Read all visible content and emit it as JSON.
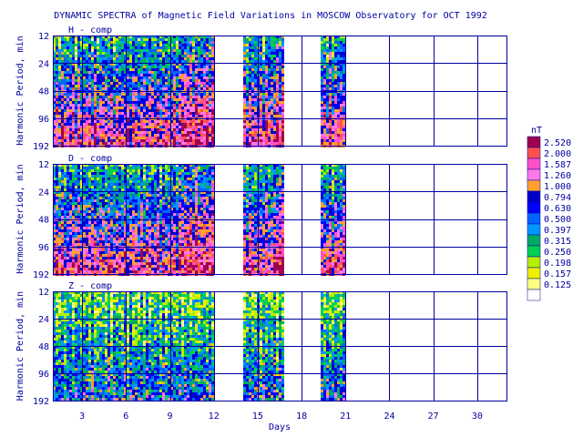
{
  "chart_data": {
    "type": "heatmap",
    "title": "DYNAMIC SPECTRA of Magnetic Field Variations in MOSCOW Observatory for OCT 1992",
    "xlabel": "Days",
    "ylabel": "Harmonic Period, min",
    "xlim": [
      1,
      32
    ],
    "x_ticks": [
      3,
      6,
      9,
      12,
      15,
      18,
      21,
      24,
      27,
      30
    ],
    "x_tick_labels": [
      "3",
      "6",
      "9",
      "12",
      "15",
      "18",
      "21",
      "24",
      "27",
      "30"
    ],
    "y_ticks": [
      12,
      24,
      48,
      96,
      192
    ],
    "y_tick_labels": [
      "12",
      "24",
      "48",
      "96",
      "192"
    ],
    "y_scale": "log2",
    "y_direction": "increasing-downward",
    "grid": true,
    "data_segments_days": [
      [
        1,
        12
      ],
      [
        14,
        16.8
      ],
      [
        19.3,
        21
      ]
    ],
    "panels": [
      {
        "name": "H - comp",
        "dominant_range_nT": [
          0.25,
          2.52
        ]
      },
      {
        "name": "D - comp",
        "dominant_range_nT": [
          0.25,
          2.52
        ]
      },
      {
        "name": "Z - comp",
        "dominant_range_nT": [
          0.125,
          0.794
        ]
      }
    ],
    "colorbar": {
      "label": "nT",
      "levels": [
        "2.520",
        "2.000",
        "1.587",
        "1.260",
        "1.000",
        "0.794",
        "0.630",
        "0.500",
        "0.397",
        "0.315",
        "0.250",
        "0.198",
        "0.157",
        "0.125"
      ],
      "colors": [
        "#a00050",
        "#ff5050",
        "#ff50c8",
        "#ff78e6",
        "#ffa030",
        "#0000c8",
        "#0000ff",
        "#0064ff",
        "#0096ff",
        "#00aa64",
        "#00d250",
        "#b4f000",
        "#f0f000",
        "#ffff80"
      ]
    }
  }
}
